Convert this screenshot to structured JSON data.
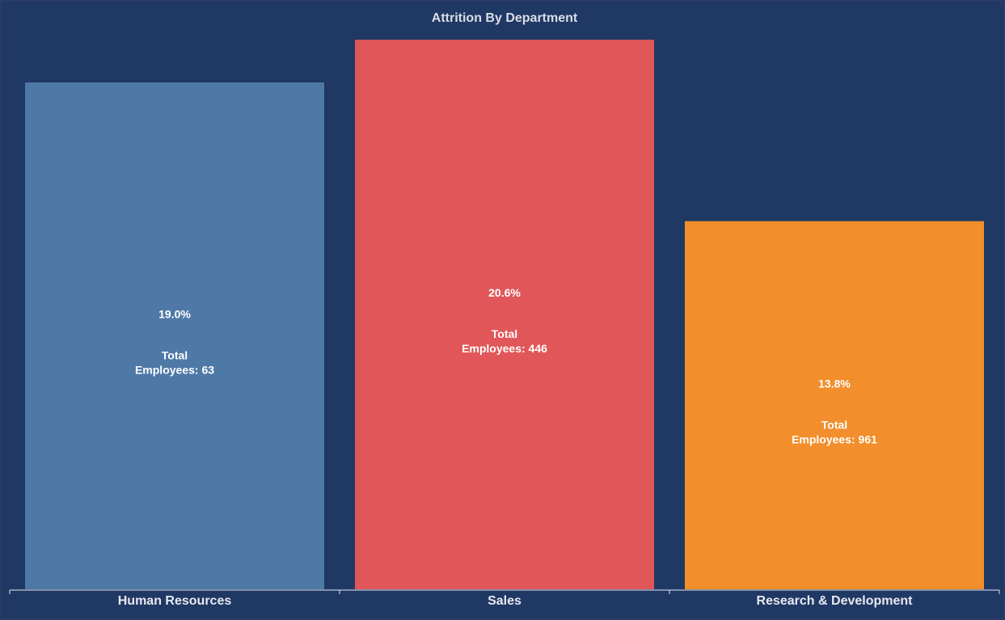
{
  "chart_data": {
    "type": "bar",
    "title": "Attrition By Department",
    "xlabel": "",
    "ylabel": "",
    "categories": [
      "Human Resources",
      "Sales",
      "Research & Development"
    ],
    "values": [
      19.0,
      20.6,
      13.8
    ],
    "value_labels": [
      "19.0%",
      "20.6%",
      "13.8%"
    ],
    "total_label": "Total",
    "employees_prefix": "Employees:",
    "total_employees": [
      63,
      446,
      961
    ],
    "colors": [
      "#4e79a7",
      "#e15759",
      "#f28e2b"
    ],
    "background": "#203864",
    "ylim": [
      0,
      21
    ],
    "grid": false,
    "legend": "none"
  }
}
